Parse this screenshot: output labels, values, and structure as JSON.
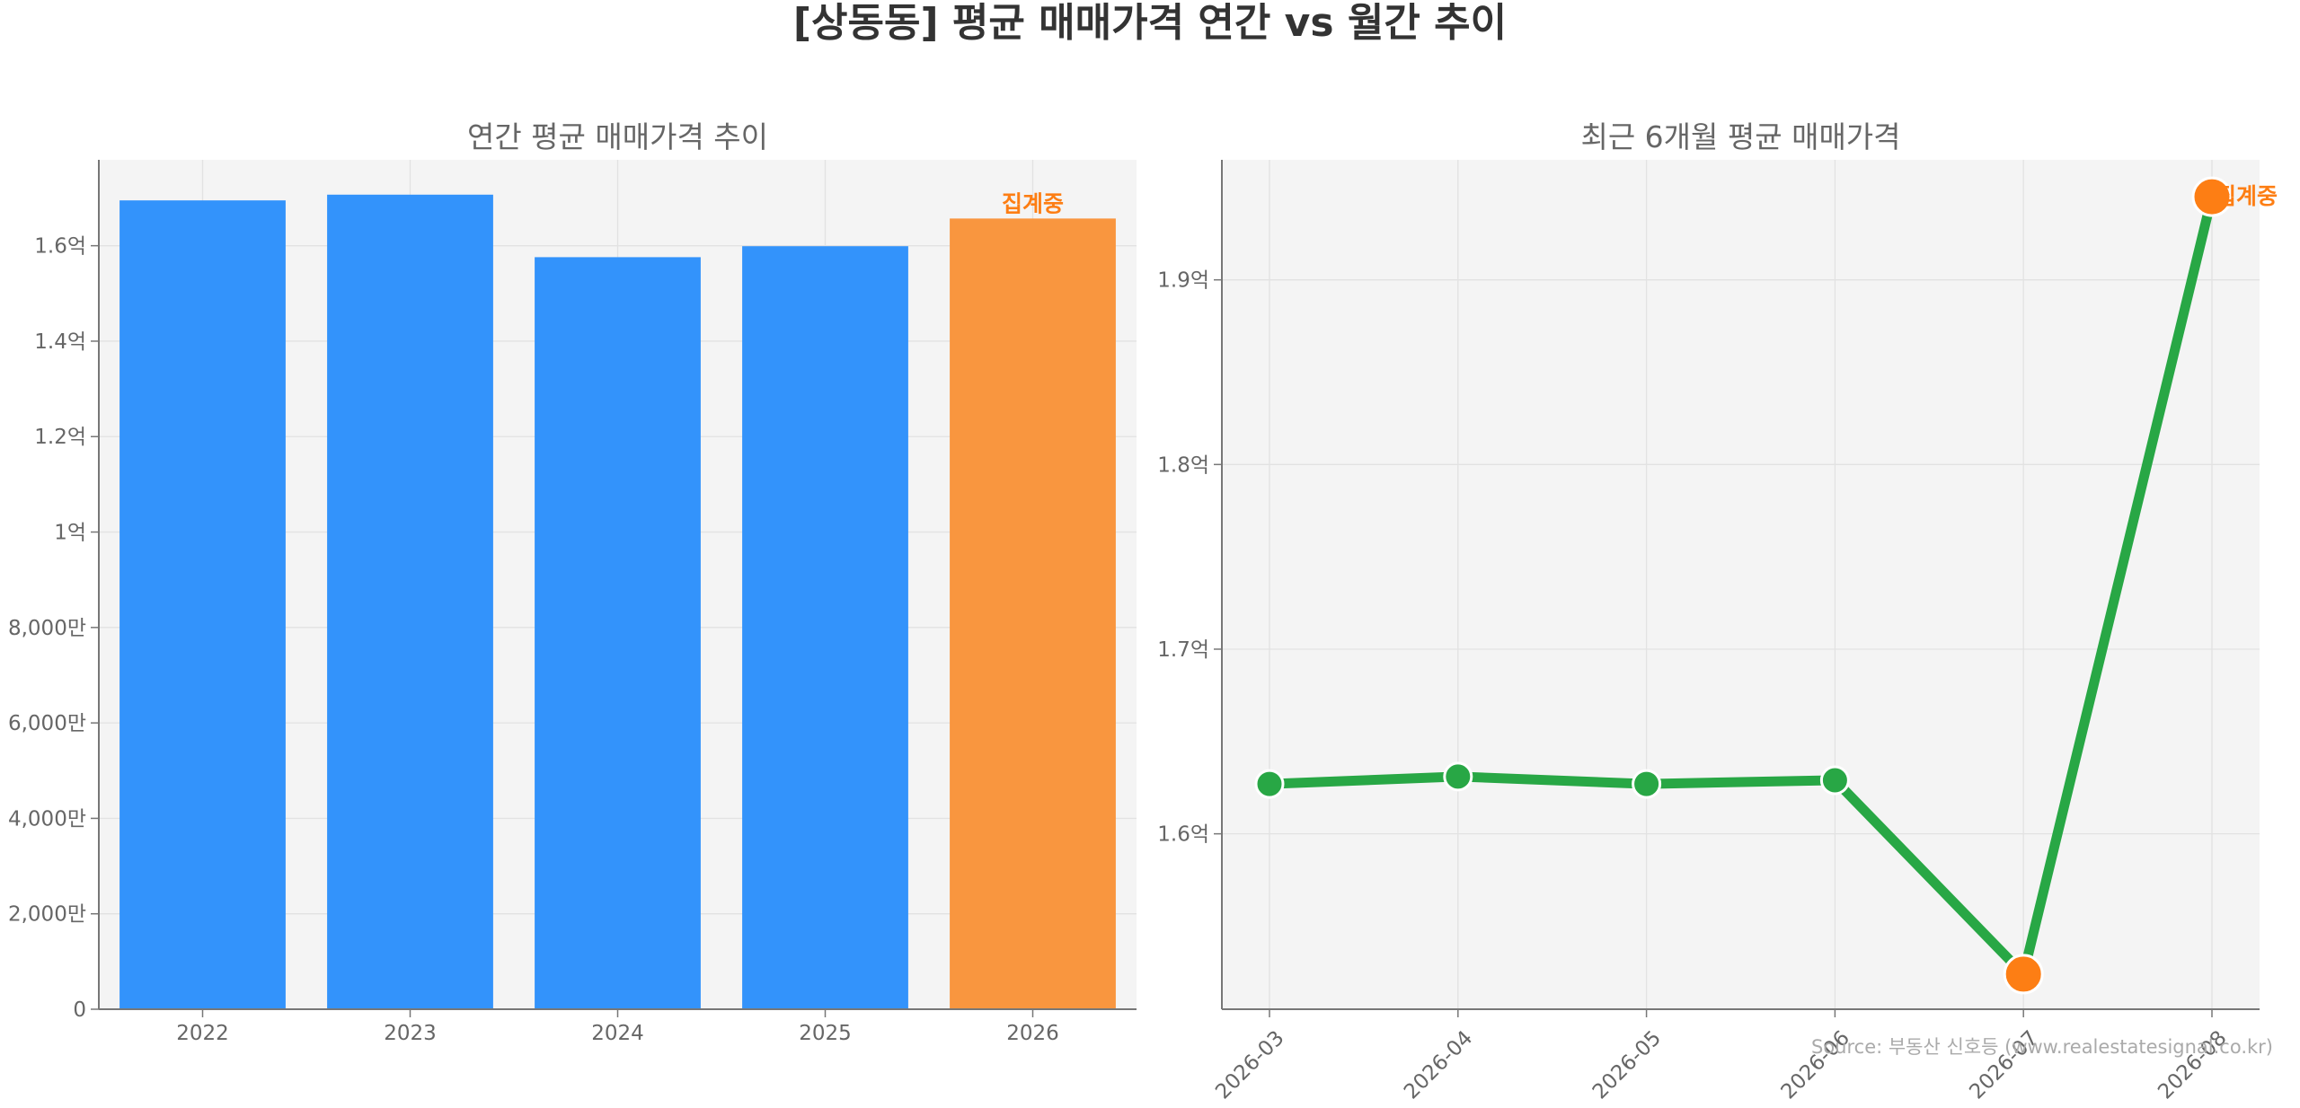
{
  "figure": {
    "title": "[상동동] 평균 매매가격 연간 vs 월간 추이",
    "source": "Source: 부동산 신호등 (www.realestatesignal.co.kr)"
  },
  "colors": {
    "bar": "#3393fb",
    "bar_highlight": "#f9963f",
    "line": "#28a745",
    "marker": "#28a745",
    "marker_highlight": "#fd7e14",
    "note": "#fd7e14",
    "plot_bg": "#f4f4f4",
    "grid": "#e2e2e2",
    "axis": "#777777"
  },
  "chart_data": [
    {
      "type": "bar",
      "title": "연간 평균 매매가격 추이",
      "categories": [
        "2022",
        "2023",
        "2024",
        "2025",
        "2026"
      ],
      "values": [
        169500000,
        170700000,
        157600000,
        159900000,
        165700000
      ],
      "highlight_index": 4,
      "annotation": {
        "index": 4,
        "text": "집계중"
      },
      "ylim": [
        0,
        178000000
      ],
      "yticks": [
        0,
        20000000,
        40000000,
        60000000,
        80000000,
        100000000,
        120000000,
        140000000,
        160000000
      ],
      "ytick_labels": [
        "0",
        "2,000만",
        "4,000만",
        "6,000만",
        "8,000만",
        "1억",
        "1.2억",
        "1.4억",
        "1.6억"
      ],
      "grid": true
    },
    {
      "type": "line",
      "title": "최근 6개월 평균 매매가격",
      "categories": [
        "2026-03",
        "2026-04",
        "2026-05",
        "2026-06",
        "2026-07",
        "2026-08"
      ],
      "values": [
        162700000,
        163100000,
        162700000,
        162900000,
        152400000,
        194500000
      ],
      "highlight_indices": [
        4,
        5
      ],
      "annotation": {
        "index": 5,
        "text": "집계중"
      },
      "ylim": [
        150500000,
        196500000
      ],
      "yticks": [
        160000000,
        170000000,
        180000000,
        190000000
      ],
      "ytick_labels": [
        "1.6억",
        "1.7억",
        "1.8억",
        "1.9억"
      ],
      "xtick_rotation": 45,
      "grid": true
    }
  ]
}
